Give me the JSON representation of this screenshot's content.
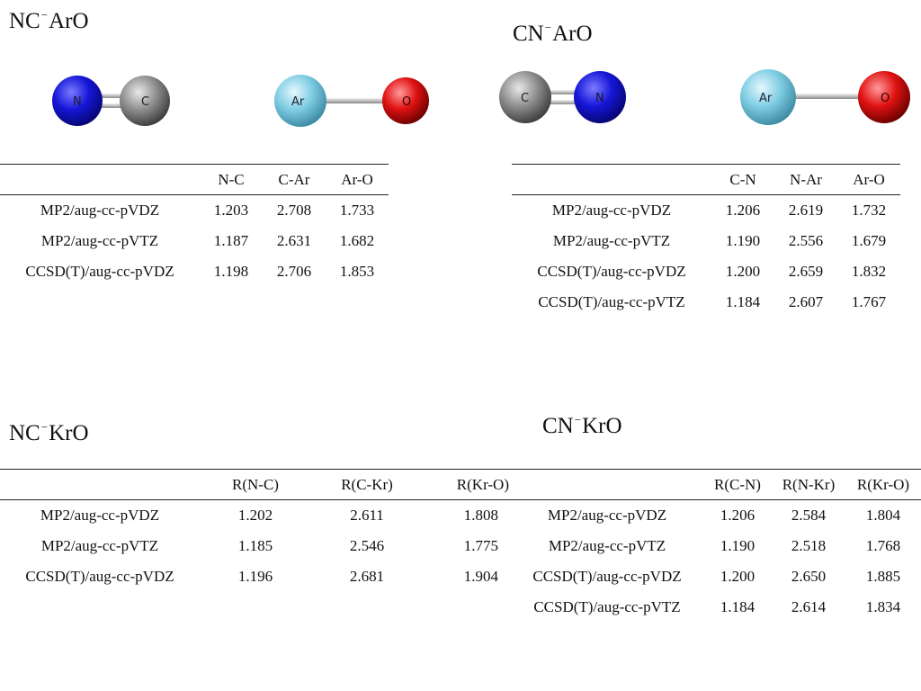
{
  "sections": {
    "nc_aro": {
      "title_left": "NC",
      "title_sup": "−",
      "title_right": "ArO",
      "atoms": [
        "N",
        "C",
        "Ar",
        "O"
      ],
      "columns": [
        "N-C",
        "C-Ar",
        "Ar-O"
      ],
      "rows": [
        {
          "method": "MP2/aug-cc-pVDZ",
          "values": [
            "1.203",
            "2.708",
            "1.733"
          ]
        },
        {
          "method": "MP2/aug-cc-pVTZ",
          "values": [
            "1.187",
            "2.631",
            "1.682"
          ]
        },
        {
          "method": "CCSD(T)/aug-cc-pVDZ",
          "values": [
            "1.198",
            "2.706",
            "1.853"
          ]
        }
      ]
    },
    "cn_aro": {
      "title_left": "CN",
      "title_sup": "−",
      "title_right": "ArO",
      "atoms": [
        "C",
        "N",
        "Ar",
        "O"
      ],
      "columns": [
        "C-N",
        "N-Ar",
        "Ar-O"
      ],
      "rows": [
        {
          "method": "MP2/aug-cc-pVDZ",
          "values": [
            "1.206",
            "2.619",
            "1.732"
          ]
        },
        {
          "method": "MP2/aug-cc-pVTZ",
          "values": [
            "1.190",
            "2.556",
            "1.679"
          ]
        },
        {
          "method": "CCSD(T)/aug-cc-pVDZ",
          "values": [
            "1.200",
            "2.659",
            "1.832"
          ]
        },
        {
          "method": "CCSD(T)/aug-cc-pVTZ",
          "values": [
            "1.184",
            "2.607",
            "1.767"
          ]
        }
      ]
    },
    "nc_kro": {
      "title_left": "NC",
      "title_sup": "−",
      "title_right": "KrO",
      "columns": [
        "R(N-C)",
        "R(C-Kr)",
        "R(Kr-O)"
      ],
      "rows": [
        {
          "method": "MP2/aug-cc-pVDZ",
          "values": [
            "1.202",
            "2.611",
            "1.808"
          ]
        },
        {
          "method": "MP2/aug-cc-pVTZ",
          "values": [
            "1.185",
            "2.546",
            "1.775"
          ]
        },
        {
          "method": "CCSD(T)/aug-cc-pVDZ",
          "values": [
            "1.196",
            "2.681",
            "1.904"
          ]
        }
      ]
    },
    "cn_kro": {
      "title_left": "CN",
      "title_sup": "−",
      "title_right": "KrO",
      "columns": [
        "R(C-N)",
        "R(N-Kr)",
        "R(Kr-O)"
      ],
      "rows": [
        {
          "method": "MP2/aug-cc-pVDZ",
          "values": [
            "1.206",
            "2.584",
            "1.804"
          ]
        },
        {
          "method": "MP2/aug-cc-pVTZ",
          "values": [
            "1.190",
            "2.518",
            "1.768"
          ]
        },
        {
          "method": "CCSD(T)/aug-cc-pVDZ",
          "values": [
            "1.200",
            "2.650",
            "1.885"
          ]
        },
        {
          "method": "CCSD(T)/aug-cc-pVTZ",
          "values": [
            "1.184",
            "2.614",
            "1.834"
          ]
        }
      ]
    }
  },
  "colors": {
    "nitrogen": "#1010d0",
    "carbon": "#8c8c8c",
    "argon": "#7ecde3",
    "oxygen": "#dd1010",
    "bond": "#bdbdbd"
  }
}
